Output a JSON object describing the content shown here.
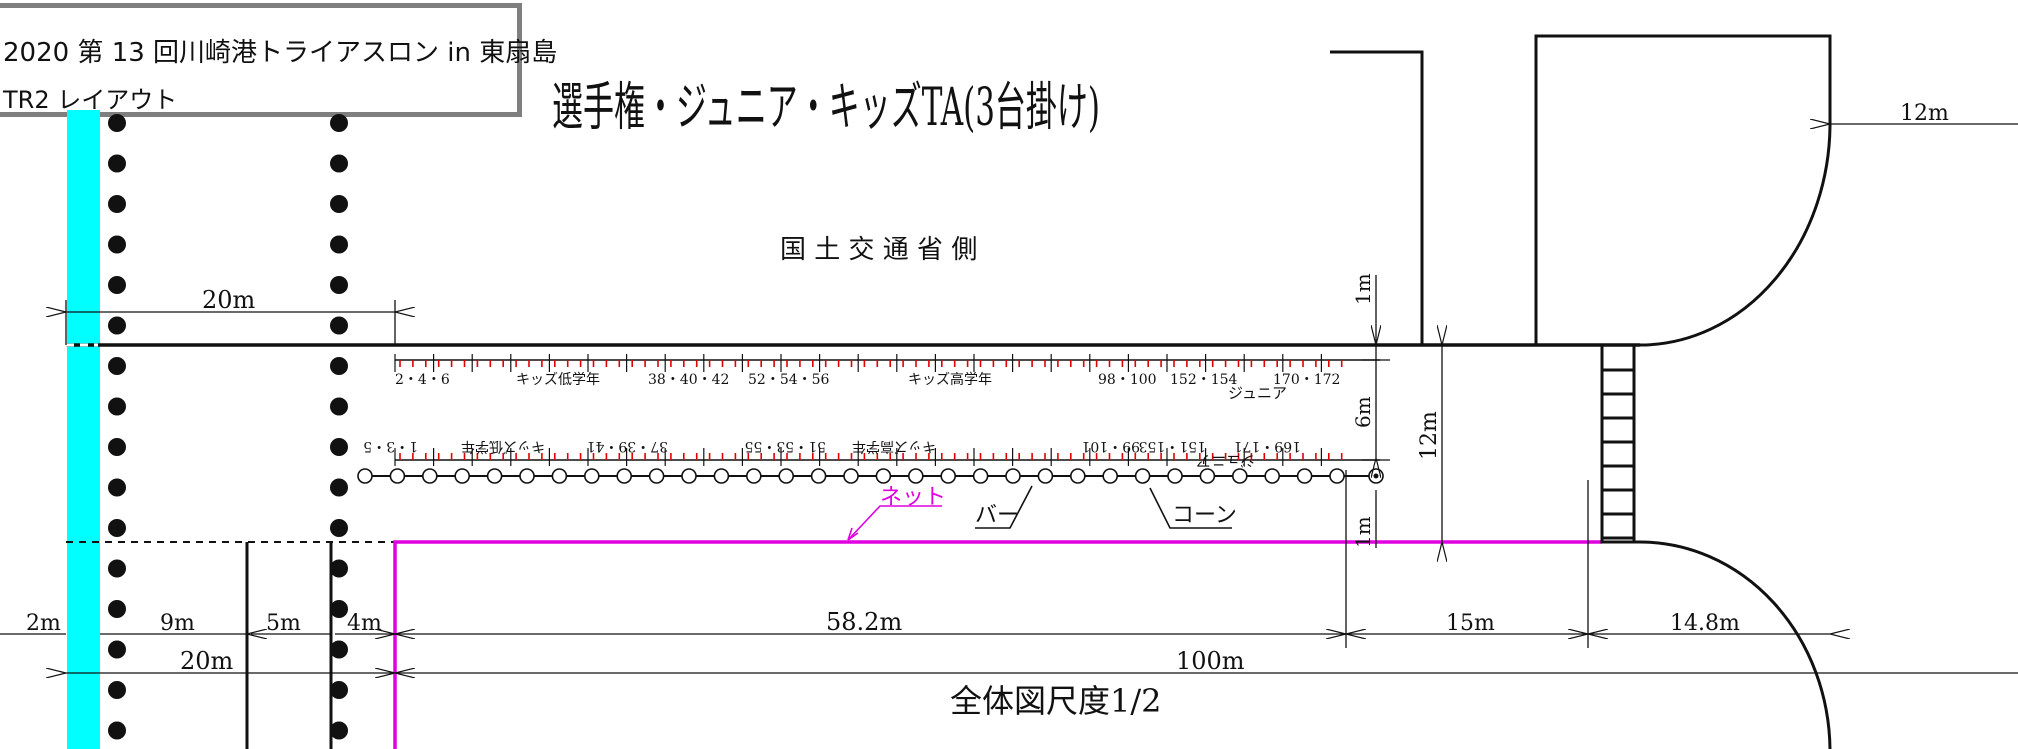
{
  "header": {
    "event_title": "2020 第 13 回川崎港トライアスロン in 東扇島",
    "layout_name": "TR2 レイアウト"
  },
  "diagram": {
    "main_title": "選手権・ジュニア・キッズTA(3台掛け)",
    "side_label": "国 土 交 通 省 側",
    "scale_note": "全体図尺度1/2",
    "rack_top_labels": [
      "2・4・6",
      "キッズ低学年",
      "38・40・42",
      "52・54・56",
      "キッズ高学年",
      "98・100",
      "152・154",
      "170・172",
      "ジュニア"
    ],
    "rack_bottom_labels": [
      "1・3・5",
      "キッズ低学年",
      "37・39・41",
      "51・53・55",
      "キッズ高学年",
      "99・101",
      "151・153",
      "169・171",
      "ジュニア"
    ],
    "callouts": {
      "net": "ネット",
      "bar": "バー",
      "cone": "コーン"
    },
    "dimensions": {
      "top_right": "12m",
      "top_left_20": "20m",
      "vert_1m_top": "1m",
      "vert_6m": "6m",
      "vert_12m": "12m",
      "vert_1m_bottom": "1m",
      "d2": "2m",
      "d9": "9m",
      "d5": "5m",
      "d4": "4m",
      "d58": "58.2m",
      "d15": "15m",
      "d148": "14.8m",
      "d20": "20m",
      "d100": "100m"
    },
    "colors": {
      "water_strip": "#00ffff",
      "net_line": "#e000e0",
      "rack_ticks": "#e00000",
      "frame": "#7f7f7f",
      "ink": "#111111"
    }
  }
}
